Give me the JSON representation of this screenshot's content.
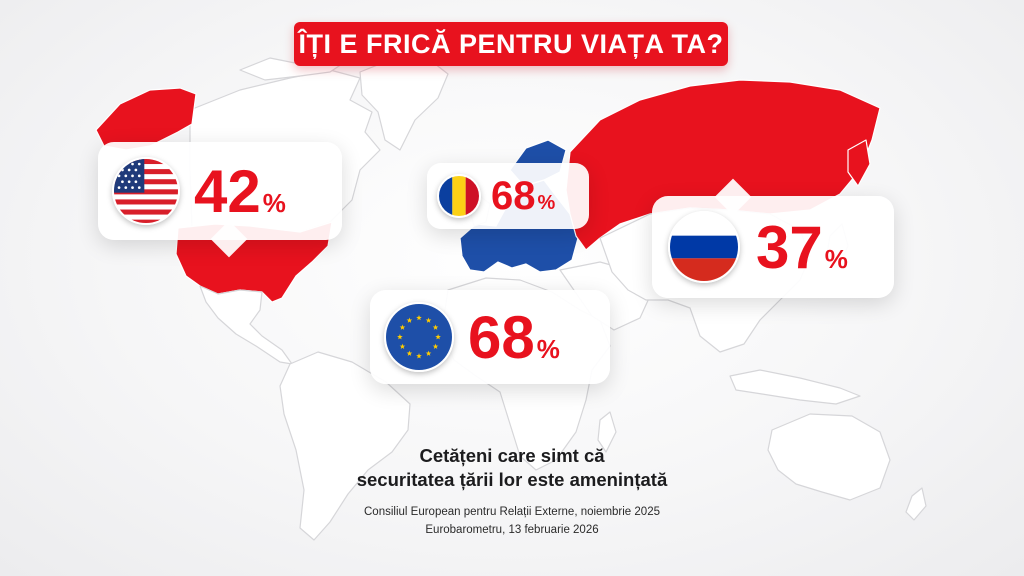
{
  "title": "ÎȚI E FRICĂ PENTRU VIAȚA TA?",
  "colors": {
    "accent": "#e8121e",
    "eu_blue": "#1e4fa8",
    "land_neutral": "#ffffff",
    "land_outline": "#d6d6d9"
  },
  "callouts": [
    {
      "id": "usa",
      "country": "United States",
      "flag_icon": "usa-flag-icon",
      "value": "42",
      "unit": "%",
      "percent": 42
    },
    {
      "id": "romania",
      "country": "Romania",
      "flag_icon": "romania-flag-icon",
      "value": "68",
      "unit": "%",
      "percent": 68
    },
    {
      "id": "eu",
      "country": "European Union",
      "flag_icon": "eu-flag-icon",
      "value": "68",
      "unit": "%",
      "percent": 68
    },
    {
      "id": "russia",
      "country": "Russia",
      "flag_icon": "russia-flag-icon",
      "value": "37",
      "unit": "%",
      "percent": 37
    }
  ],
  "subtitle": {
    "line1": "Cetățeni care simt că",
    "line2": "securitatea țării lor este amenințată"
  },
  "sources": {
    "line1": "Consiliul European pentru Relații Externe, noiembrie 2025",
    "line2": "Eurobarometru, 13 februarie 2026"
  }
}
